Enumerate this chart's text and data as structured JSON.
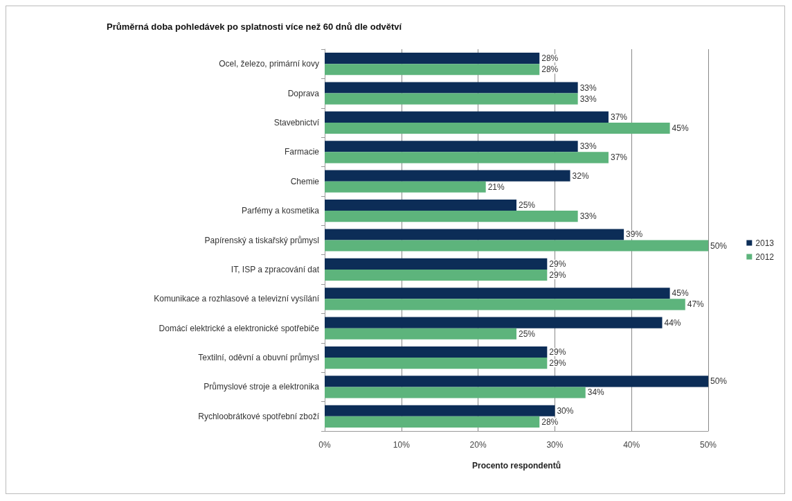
{
  "chart_data": {
    "type": "bar",
    "orientation": "horizontal",
    "title": "Průměrná doba pohledávek po splatnosti více než 60 dnů dle odvětví",
    "xlabel": "Procento respondentů",
    "categories": [
      "Ocel, železo, primární kovy",
      "Doprava",
      "Stavebnictví",
      "Farmacie",
      "Chemie",
      "Parfémy a kosmetika",
      "Papírenský a tiskařský průmysl",
      "IT, ISP a zpracování dat",
      "Komunikace a rozhlasové a televizní vysílání",
      "Domácí elektrické a elektronické spotřebiče",
      "Textilní, oděvní a obuvní průmysl",
      "Průmyslové stroje a elektronika",
      "Rychloobrátkové spotřební zboží"
    ],
    "series": [
      {
        "name": "2013",
        "color": "#0c2d57",
        "values": [
          28,
          33,
          37,
          33,
          32,
          25,
          39,
          29,
          45,
          44,
          29,
          50,
          30
        ],
        "value_labels": [
          "28%",
          "33%",
          "37%",
          "33%",
          "32%",
          "25%",
          "39%",
          "29%",
          "45%",
          "44%",
          "29%",
          "50%",
          "30%"
        ]
      },
      {
        "name": "2012",
        "color": "#5db47c",
        "values": [
          28,
          33,
          45,
          37,
          21,
          33,
          50,
          29,
          47,
          25,
          29,
          34,
          28
        ],
        "value_labels": [
          "28%",
          "33%",
          "45%",
          "37%",
          "21%",
          "33%",
          "50%",
          "29%",
          "47%",
          "25%",
          "29%",
          "34%",
          "28%"
        ]
      }
    ],
    "xlim": [
      0,
      50
    ],
    "xticks": [
      {
        "value": 0,
        "label": "0%"
      },
      {
        "value": 10,
        "label": "10%"
      },
      {
        "value": 20,
        "label": "20%"
      },
      {
        "value": 30,
        "label": "30%"
      },
      {
        "value": 40,
        "label": "40%"
      },
      {
        "value": 50,
        "label": "50%"
      }
    ],
    "grid": "x",
    "legend": "right"
  }
}
